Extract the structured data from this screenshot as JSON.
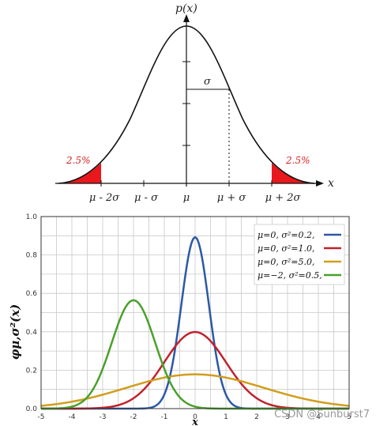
{
  "top_diagram": {
    "y_label": "p(x)",
    "x_label": "x",
    "sigma_label": "σ",
    "tail_left": "2.5%",
    "tail_right": "2.5%",
    "axis_ticks": [
      "μ - 2σ",
      "μ - σ",
      "μ",
      "μ + σ",
      "μ + 2σ"
    ],
    "colors": {
      "curve": "#111111",
      "tail": "#e8181c",
      "tail_text": "#d61f1f"
    }
  },
  "chart_data": {
    "type": "line",
    "title": "",
    "xlabel": "x",
    "ylabel": "φμ,σ²(x)",
    "xlim": [
      -5,
      5
    ],
    "ylim": [
      0,
      1.0
    ],
    "x_ticks": [
      "-5",
      "-4",
      "-3",
      "-2",
      "-1",
      "0",
      "1",
      "2",
      "3",
      "4",
      "5"
    ],
    "y_ticks": [
      "0.0",
      "0.2",
      "0.4",
      "0.6",
      "0.8",
      "1.0"
    ],
    "grid": true,
    "legend_position": "top-right",
    "series": [
      {
        "name": "μ=0,   σ²=0.2,",
        "mu": 0,
        "variance": 0.2,
        "color": "#2c58a5",
        "peak": 0.89
      },
      {
        "name": "μ=0,   σ²=1.0,",
        "mu": 0,
        "variance": 1.0,
        "color": "#c0232d",
        "peak": 0.4
      },
      {
        "name": "μ=0,   σ²=5.0,",
        "mu": 0,
        "variance": 5.0,
        "color": "#d19d1c",
        "peak": 0.18
      },
      {
        "name": "μ=−2, σ²=0.5,",
        "mu": -2,
        "variance": 0.5,
        "color": "#4aa02c",
        "peak": 0.56
      }
    ]
  },
  "watermark": "CSDN @Sunburst7"
}
